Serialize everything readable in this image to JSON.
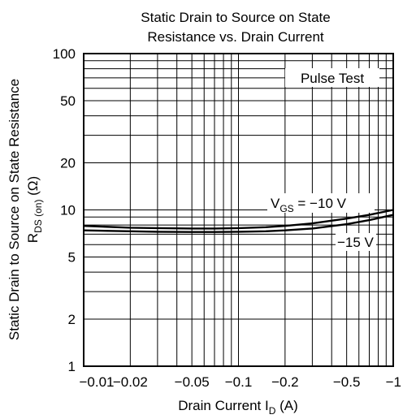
{
  "chart_data": {
    "type": "line",
    "title_lines": [
      "Static Drain to Source on State",
      "Resistance vs. Drain Current"
    ],
    "xlabel": {
      "main": "Drain Current  I",
      "sub": "D",
      "unit": "  (A)"
    },
    "ylabel": {
      "line1": "Static Drain to Source on State Resistance",
      "main": "R",
      "sub": "DS (on)",
      "unit": "  (Ω)"
    },
    "x_scale": "log",
    "y_scale": "log",
    "xlim": [
      -0.01,
      -1
    ],
    "ylim": [
      1,
      100
    ],
    "x_ticks": [
      {
        "value": -0.01,
        "label": "−0.01"
      },
      {
        "value": -0.02,
        "label": "−0.02"
      },
      {
        "value": -0.05,
        "label": "−0.05"
      },
      {
        "value": -0.1,
        "label": "−0.1"
      },
      {
        "value": -0.2,
        "label": "−0.2"
      },
      {
        "value": -0.5,
        "label": "−0.5"
      },
      {
        "value": -1,
        "label": "−1"
      }
    ],
    "y_ticks": [
      {
        "value": 1,
        "label": "1"
      },
      {
        "value": 2,
        "label": "2"
      },
      {
        "value": 5,
        "label": "5"
      },
      {
        "value": 10,
        "label": "10"
      },
      {
        "value": 20,
        "label": "20"
      },
      {
        "value": 50,
        "label": "50"
      },
      {
        "value": 100,
        "label": "100"
      }
    ],
    "grid": true,
    "annotations": {
      "pulse_test": "Pulse Test",
      "vgs_main": "V",
      "vgs_sub": "GS",
      "vgs_value": " = −10 V",
      "vgs15": "−15 V"
    },
    "series": [
      {
        "label_key": "vgs_value",
        "x": [
          -0.01,
          -0.02,
          -0.03,
          -0.05,
          -0.07,
          -0.1,
          -0.15,
          -0.2,
          -0.3,
          -0.5,
          -0.7,
          -1
        ],
        "y": [
          7.9,
          7.7,
          7.65,
          7.6,
          7.6,
          7.65,
          7.75,
          7.9,
          8.2,
          8.8,
          9.3,
          10.0
        ]
      },
      {
        "label_key": "vgs15",
        "x": [
          -0.01,
          -0.02,
          -0.03,
          -0.05,
          -0.07,
          -0.1,
          -0.15,
          -0.2,
          -0.3,
          -0.5,
          -0.7,
          -1
        ],
        "y": [
          7.4,
          7.3,
          7.25,
          7.22,
          7.22,
          7.25,
          7.3,
          7.4,
          7.6,
          8.1,
          8.6,
          9.3
        ]
      }
    ]
  }
}
